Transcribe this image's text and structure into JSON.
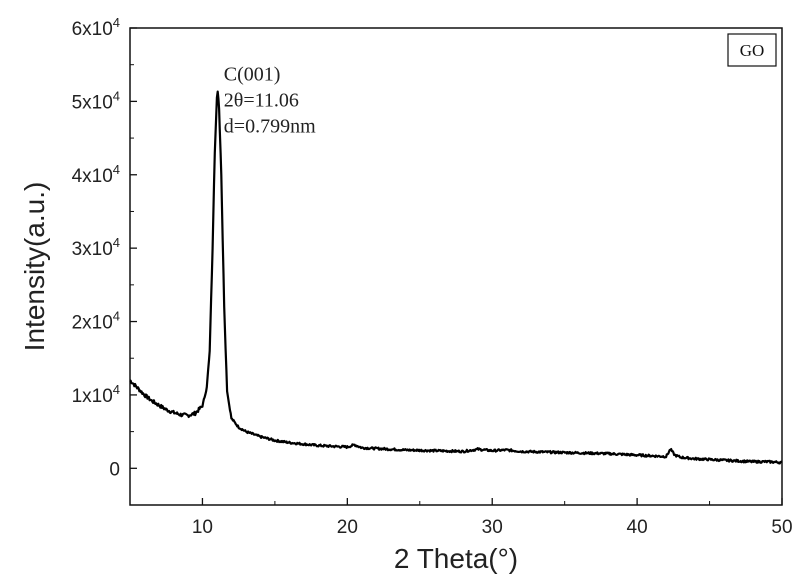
{
  "chart_data": {
    "type": "line",
    "title": "",
    "xlabel": "2 Theta(°)",
    "ylabel": "Intensity(a.u.)",
    "xlim": [
      5,
      50
    ],
    "ylim": [
      -5000,
      60000
    ],
    "x_ticks": [
      10,
      20,
      30,
      40,
      50
    ],
    "x_tick_labels": [
      "10",
      "20",
      "30",
      "40",
      "50"
    ],
    "y_ticks": [
      0,
      10000,
      20000,
      30000,
      40000,
      50000,
      60000
    ],
    "y_tick_labels": [
      {
        "base": "0",
        "exp": ""
      },
      {
        "base": "1x10",
        "exp": "4"
      },
      {
        "base": "2x10",
        "exp": "4"
      },
      {
        "base": "3x10",
        "exp": "4"
      },
      {
        "base": "4x10",
        "exp": "4"
      },
      {
        "base": "5x10",
        "exp": "4"
      },
      {
        "base": "6x10",
        "exp": "4"
      }
    ],
    "legend": {
      "label": "GO",
      "position": "top-right"
    },
    "grid": false,
    "annotation": {
      "lines": [
        "C(001)",
        "2θ=11.06",
        "d=0.799nm"
      ],
      "x": 11.06,
      "y": 51500
    },
    "series": [
      {
        "name": "GO",
        "color": "#000000",
        "x": [
          5.0,
          5.5,
          6.0,
          6.5,
          7.0,
          7.5,
          8.0,
          8.5,
          9.0,
          9.5,
          10.0,
          10.3,
          10.5,
          10.7,
          10.85,
          11.0,
          11.06,
          11.15,
          11.3,
          11.5,
          11.7,
          12.0,
          12.5,
          13.0,
          14.0,
          15.0,
          16.0,
          17.0,
          18.0,
          19.0,
          20.0,
          20.5,
          21.0,
          22.0,
          24.0,
          26.0,
          28.0,
          29.0,
          30.0,
          31.0,
          32.0,
          34.0,
          36.0,
          38.0,
          40.0,
          41.0,
          42.0,
          42.3,
          42.6,
          43.0,
          44.0,
          45.0,
          46.0,
          47.0,
          48.0,
          49.0,
          50.0
        ],
        "y": [
          12000,
          11000,
          10000,
          9200,
          8600,
          8000,
          7600,
          7300,
          7200,
          7500,
          8500,
          11000,
          16000,
          30000,
          43000,
          50500,
          51500,
          49000,
          40000,
          22000,
          10500,
          6800,
          5600,
          5000,
          4300,
          3800,
          3500,
          3300,
          3100,
          3000,
          2900,
          3200,
          2800,
          2700,
          2500,
          2400,
          2300,
          2600,
          2400,
          2500,
          2300,
          2200,
          2100,
          2000,
          1800,
          1700,
          1600,
          2600,
          1800,
          1500,
          1300,
          1200,
          1100,
          1000,
          900,
          900,
          800
        ]
      }
    ]
  }
}
